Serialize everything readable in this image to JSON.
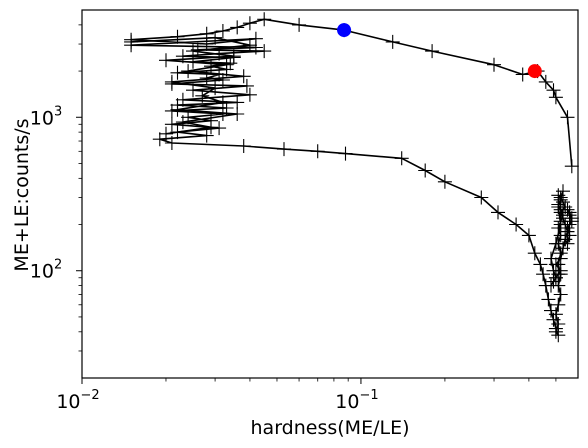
{
  "chart_data": {
    "type": "line",
    "xlabel": "hardness(ME/LE)",
    "ylabel": "ME+LE:counts/s",
    "xscale": "log",
    "yscale": "log",
    "xlim": [
      0.01,
      0.6
    ],
    "ylim": [
      20,
      5000
    ],
    "grid": false,
    "x_ticks": [
      {
        "value": 0.01,
        "base": "10",
        "exp": "−2"
      },
      {
        "value": 0.1,
        "base": "10",
        "exp": "−1"
      }
    ],
    "y_ticks": [
      {
        "value": 100,
        "base": "10",
        "exp": "2"
      },
      {
        "value": 1000,
        "base": "10",
        "exp": "3"
      }
    ],
    "series": [
      {
        "color": "#000000",
        "marker": "plus",
        "x": [
          0.57,
          0.55,
          0.5,
          0.49,
          0.46,
          0.43,
          0.38,
          0.3,
          0.18,
          0.13,
          0.087,
          0.06,
          0.045,
          0.04,
          0.036,
          0.032,
          0.028,
          0.022,
          0.015,
          0.028,
          0.042,
          0.015,
          0.042,
          0.026,
          0.045,
          0.031,
          0.023,
          0.035,
          0.025,
          0.034,
          0.029,
          0.033,
          0.022,
          0.031,
          0.028,
          0.032,
          0.021,
          0.039,
          0.025,
          0.04,
          0.023,
          0.036,
          0.022,
          0.033,
          0.021,
          0.032,
          0.024,
          0.029,
          0.021,
          0.031,
          0.022,
          0.028,
          0.019,
          0.021,
          0.038,
          0.053,
          0.07,
          0.088,
          0.14,
          0.17,
          0.2,
          0.27,
          0.31,
          0.36,
          0.4,
          0.42,
          0.44,
          0.45,
          0.46,
          0.47,
          0.48,
          0.49,
          0.5,
          0.51,
          0.5,
          0.51,
          0.5,
          0.51,
          0.52,
          0.51,
          0.52,
          0.51,
          0.52,
          0.51,
          0.52,
          0.51,
          0.52,
          0.53,
          0.52,
          0.51,
          0.52,
          0.51,
          0.52,
          0.53,
          0.54,
          0.52,
          0.53,
          0.54,
          0.55,
          0.54,
          0.55,
          0.56,
          0.55,
          0.57,
          0.56,
          0.55,
          0.56,
          0.57,
          0.56,
          0.55,
          0.54,
          0.53,
          0.52,
          0.5,
          0.52,
          0.51,
          0.5,
          0.49,
          0.48,
          0.5,
          0.49,
          0.48,
          0.5,
          0.52,
          0.51,
          0.53
        ],
        "y": [
          480,
          1000,
          1350,
          1500,
          1700,
          2000,
          1900,
          2200,
          2700,
          3100,
          3700,
          4000,
          4350,
          4100,
          3850,
          3650,
          3500,
          3350,
          3200,
          3000,
          3250,
          2950,
          2850,
          2750,
          2700,
          2600,
          2500,
          2450,
          2300,
          2250,
          2150,
          2050,
          1950,
          1900,
          1800,
          1750,
          1650,
          1600,
          1500,
          1400,
          1300,
          1250,
          1200,
          1150,
          1100,
          1050,
          1000,
          950,
          900,
          850,
          800,
          760,
          720,
          680,
          650,
          620,
          600,
          580,
          540,
          450,
          380,
          300,
          240,
          200,
          170,
          130,
          110,
          95,
          80,
          65,
          55,
          48,
          42,
          38,
          40,
          45,
          52,
          60,
          70,
          80,
          95,
          110,
          130,
          150,
          170,
          190,
          210,
          230,
          250,
          270,
          290,
          310,
          300,
          280,
          260,
          240,
          220,
          200,
          180,
          160,
          150,
          170,
          190,
          210,
          230,
          250,
          240,
          220,
          200,
          180,
          160,
          140,
          120,
          110,
          100,
          95,
          90,
          85,
          80,
          90,
          100,
          120,
          150,
          200,
          260,
          330
        ]
      },
      {
        "color": "#000000",
        "marker": "plus",
        "x": [
          0.015,
          0.03,
          0.04,
          0.025,
          0.035,
          0.02,
          0.033,
          0.024,
          0.038,
          0.021,
          0.03,
          0.027,
          0.032,
          0.022,
          0.036,
          0.023,
          0.029,
          0.02
        ],
        "y": [
          3100,
          3300,
          2950,
          2700,
          2500,
          2350,
          2200,
          2000,
          1850,
          1700,
          1550,
          1380,
          1250,
          1120,
          1050,
          930,
          860,
          780
        ]
      }
    ],
    "highlights": [
      {
        "x": 0.087,
        "y": 3700,
        "color": "#0000ff"
      },
      {
        "x": 0.42,
        "y": 2000,
        "color": "#ff0000"
      }
    ]
  }
}
